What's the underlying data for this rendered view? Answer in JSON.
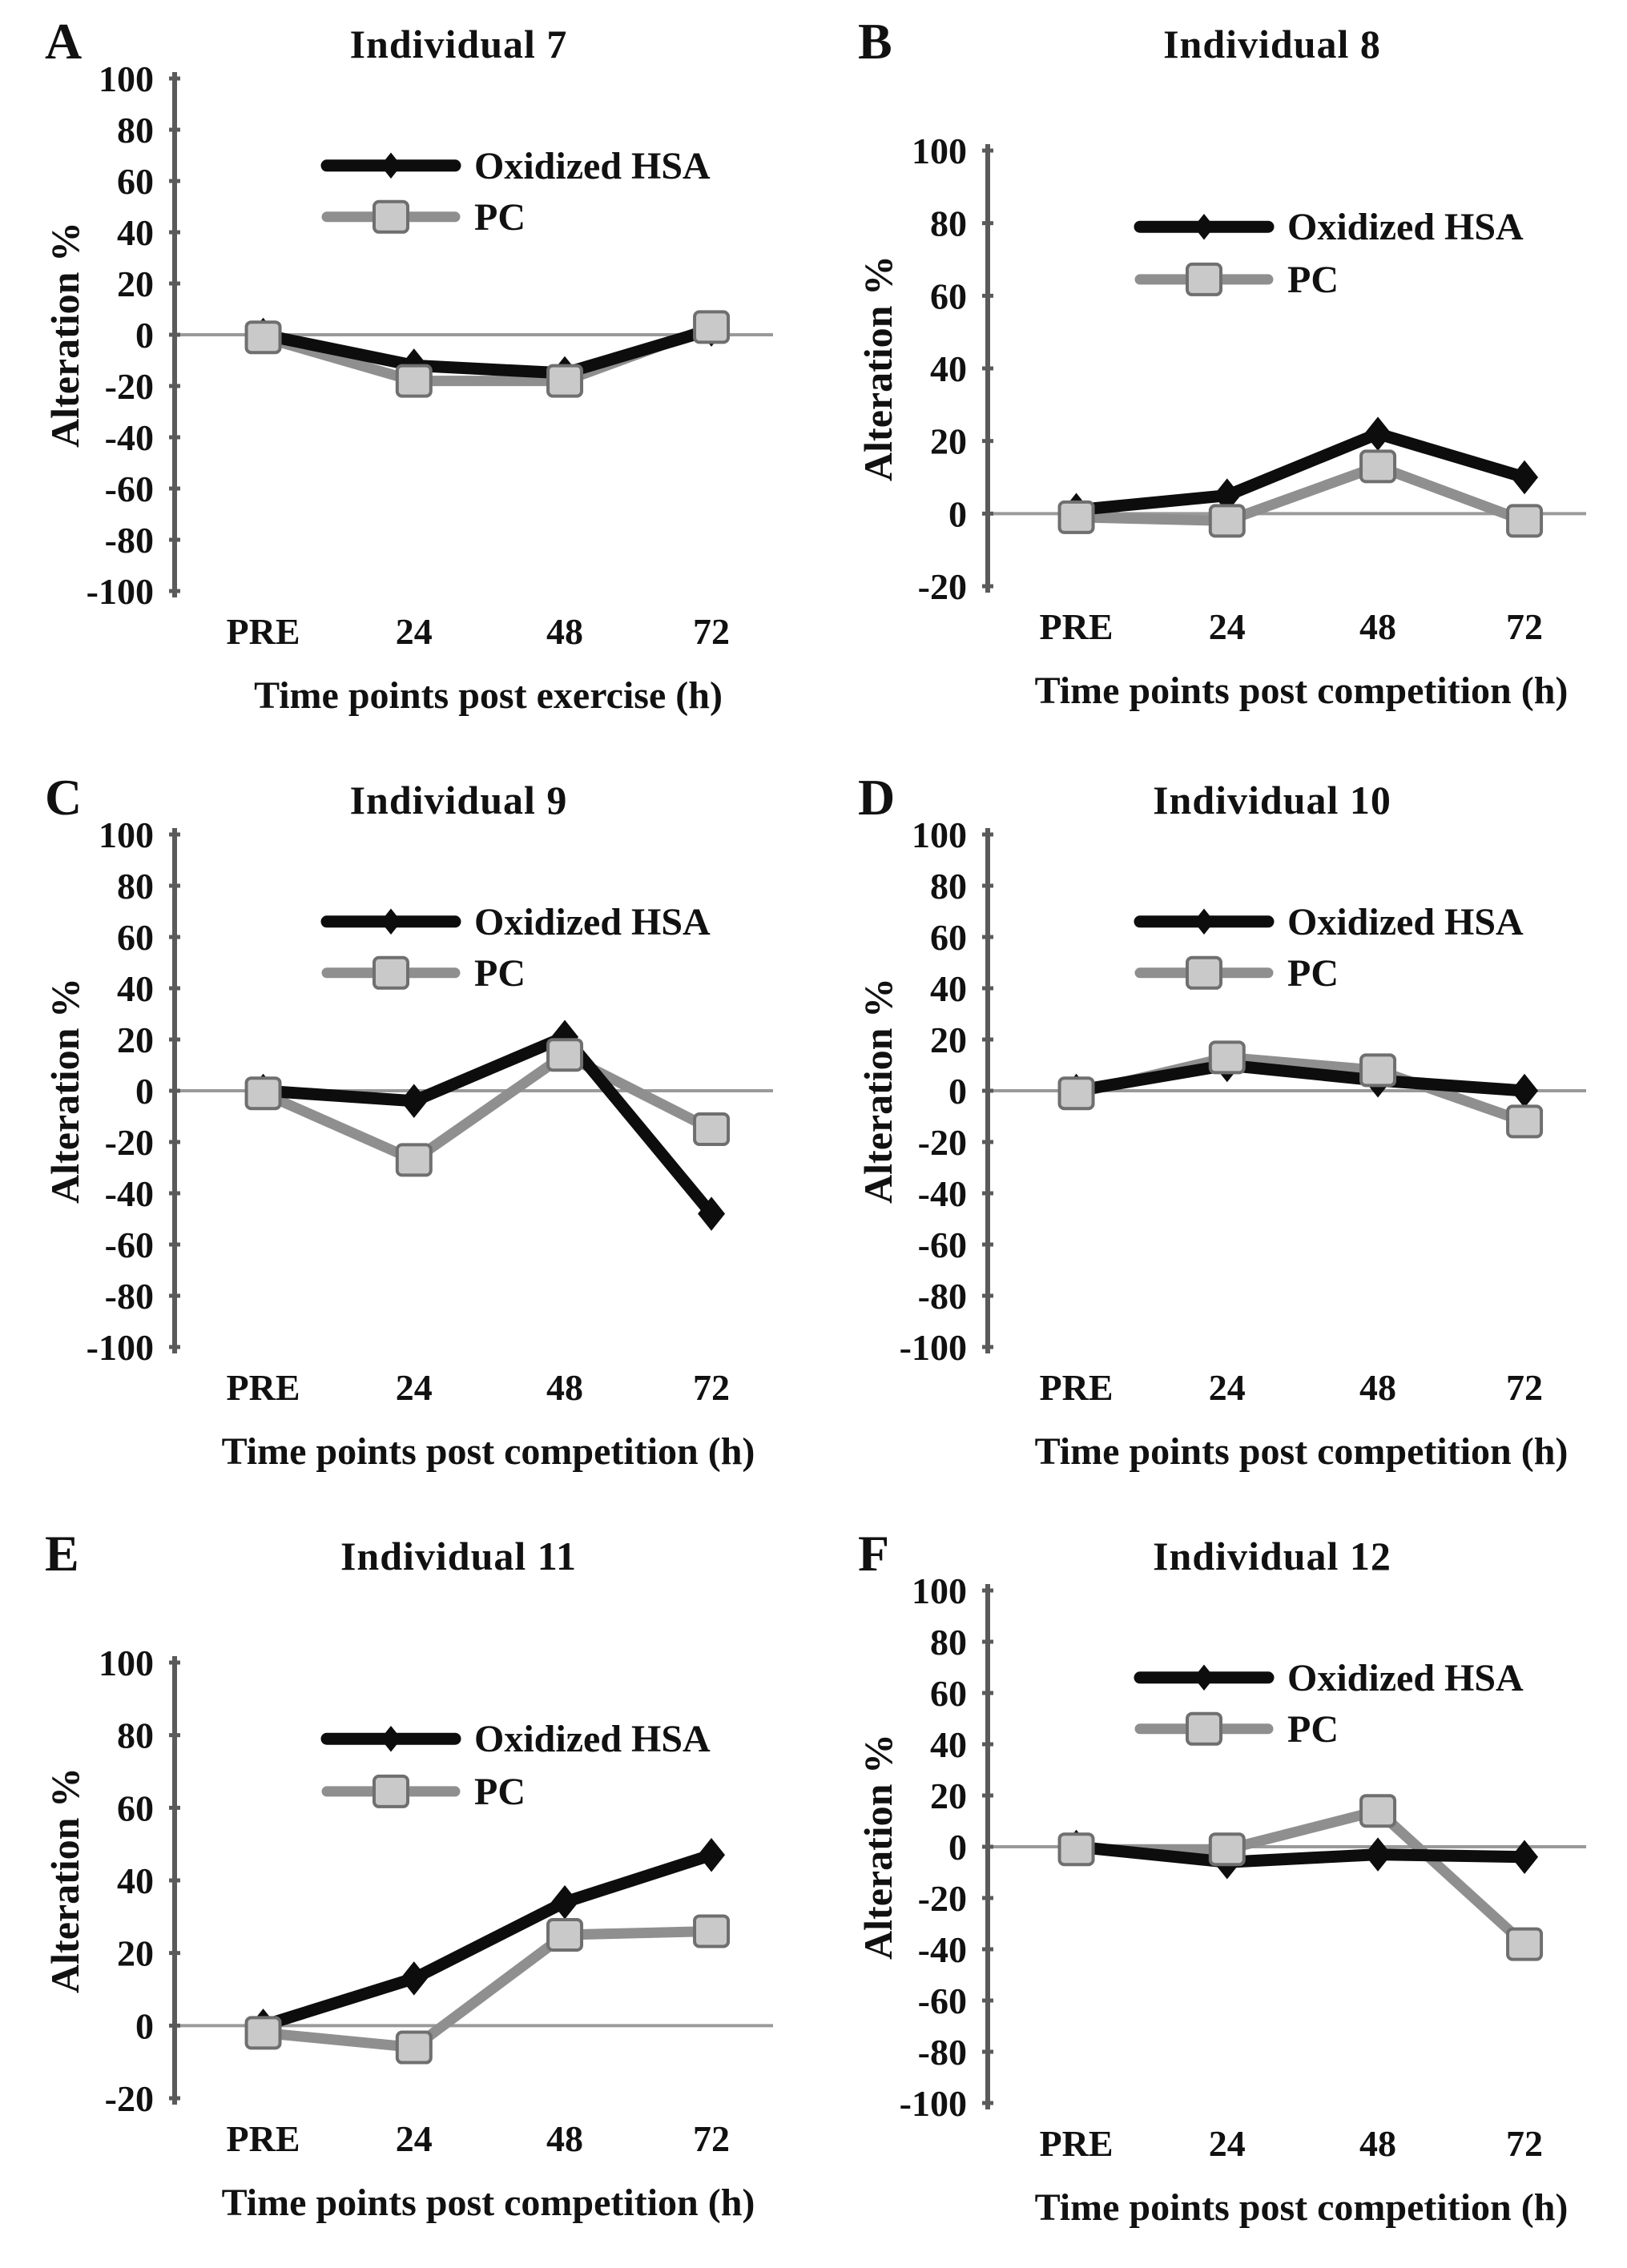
{
  "figure": {
    "ylabel": "Alteration %",
    "series_names": [
      "Oxidized HSA",
      "PC"
    ],
    "colors": {
      "hsa_line": "#0d0d0d",
      "pc_line": "#8f8f8f",
      "pc_square_fill": "#c9c9c9",
      "pc_square_stroke": "#6f6f6f",
      "axis": "#5a5a5a",
      "zero_line": "#9a9a9a",
      "text": "#111111"
    }
  },
  "chart_data": [
    {
      "type": "line",
      "panel_letter": "A",
      "title": "Individual 7",
      "xlabel": "Time points post exercise (h)",
      "ylabel": "Alteration %",
      "ylim": [
        -100,
        100
      ],
      "yticks": [
        100,
        80,
        60,
        40,
        20,
        0,
        -20,
        -40,
        -60,
        -80,
        -100
      ],
      "categories": [
        "PRE",
        "24",
        "48",
        "72"
      ],
      "series": [
        {
          "name": "Oxidized HSA",
          "marker": "diamond",
          "values": [
            0,
            -12,
            -15,
            2
          ]
        },
        {
          "name": "PC",
          "marker": "square",
          "values": [
            -1,
            -18,
            -18,
            3
          ]
        }
      ],
      "legend_position": "upper-left",
      "grid": "zero-line-only"
    },
    {
      "type": "line",
      "panel_letter": "B",
      "title": "Individual 8",
      "xlabel": "Time points post competition (h)",
      "ylabel": "Alteration %",
      "ylim": [
        -20,
        100
      ],
      "yticks": [
        100,
        80,
        60,
        40,
        20,
        0,
        -20
      ],
      "categories": [
        "PRE",
        "24",
        "48",
        "72"
      ],
      "series": [
        {
          "name": "Oxidized HSA",
          "marker": "diamond",
          "values": [
            1,
            5,
            22,
            10
          ]
        },
        {
          "name": "PC",
          "marker": "square",
          "values": [
            -1,
            -2,
            13,
            -2
          ]
        }
      ],
      "legend_position": "upper-left",
      "grid": "zero-line-only"
    },
    {
      "type": "line",
      "panel_letter": "C",
      "title": "Individual 9",
      "xlabel": "Time points post competition (h)",
      "ylabel": "Alteration %",
      "ylim": [
        -100,
        100
      ],
      "yticks": [
        100,
        80,
        60,
        40,
        20,
        0,
        -20,
        -40,
        -60,
        -80,
        -100
      ],
      "categories": [
        "PRE",
        "24",
        "48",
        "72"
      ],
      "series": [
        {
          "name": "Oxidized HSA",
          "marker": "diamond",
          "values": [
            0,
            -4,
            21,
            -48
          ]
        },
        {
          "name": "PC",
          "marker": "square",
          "values": [
            -1,
            -27,
            14,
            -15
          ]
        }
      ],
      "legend_position": "upper-left",
      "grid": "zero-line-only"
    },
    {
      "type": "line",
      "panel_letter": "D",
      "title": "Individual 10",
      "xlabel": "Time points post competition (h)",
      "ylabel": "Alteration %",
      "ylim": [
        -100,
        100
      ],
      "yticks": [
        100,
        80,
        60,
        40,
        20,
        0,
        -20,
        -40,
        -60,
        -80,
        -100
      ],
      "categories": [
        "PRE",
        "24",
        "48",
        "72"
      ],
      "series": [
        {
          "name": "Oxidized HSA",
          "marker": "diamond",
          "values": [
            0,
            10,
            4,
            0
          ]
        },
        {
          "name": "PC",
          "marker": "square",
          "values": [
            -1,
            13,
            8,
            -12
          ]
        }
      ],
      "legend_position": "upper-left",
      "grid": "zero-line-only"
    },
    {
      "type": "line",
      "panel_letter": "E",
      "title": "Individual 11",
      "xlabel": "Time points post competition (h)",
      "ylabel": "Alteration %",
      "ylim": [
        -20,
        100
      ],
      "yticks": [
        100,
        80,
        60,
        40,
        20,
        0,
        -20
      ],
      "categories": [
        "PRE",
        "24",
        "48",
        "72"
      ],
      "series": [
        {
          "name": "Oxidized HSA",
          "marker": "diamond",
          "values": [
            0,
            13,
            34,
            47
          ]
        },
        {
          "name": "PC",
          "marker": "square",
          "values": [
            -2,
            -6,
            25,
            26
          ]
        }
      ],
      "legend_position": "upper-left",
      "grid": "zero-line-only"
    },
    {
      "type": "line",
      "panel_letter": "F",
      "title": "Individual 12",
      "xlabel": "Time points post competition (h)",
      "ylabel": "Alteration %",
      "ylim": [
        -100,
        100
      ],
      "yticks": [
        100,
        80,
        60,
        40,
        20,
        0,
        -20,
        -40,
        -60,
        -80,
        -100
      ],
      "categories": [
        "PRE",
        "24",
        "48",
        "72"
      ],
      "series": [
        {
          "name": "Oxidized HSA",
          "marker": "diamond",
          "values": [
            0,
            -6,
            -3,
            -4
          ]
        },
        {
          "name": "PC",
          "marker": "square",
          "values": [
            -1,
            -1,
            14,
            -38
          ]
        }
      ],
      "legend_position": "upper-left",
      "grid": "zero-line-only"
    }
  ]
}
